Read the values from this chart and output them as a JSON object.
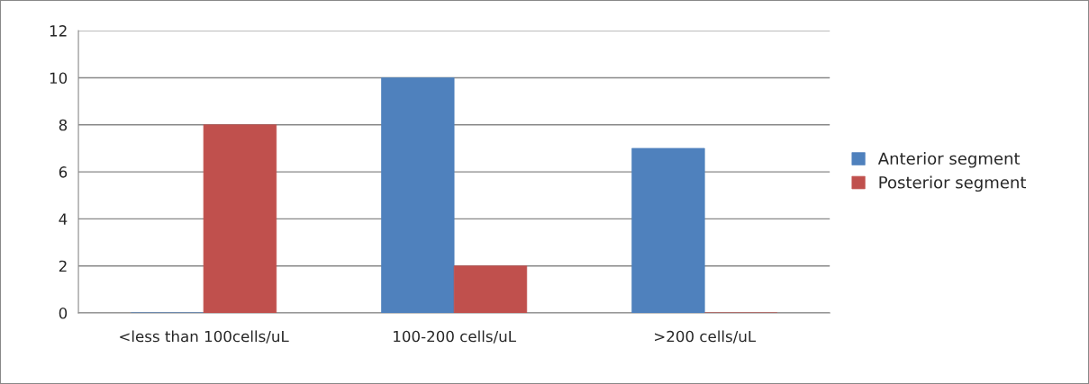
{
  "chart_data": {
    "type": "bar",
    "categories": [
      "<less than 100cells/uL",
      "100-200 cells/uL",
      ">200 cells/uL"
    ],
    "series": [
      {
        "name": "Anterior segment",
        "color": "#4f81bd",
        "values": [
          0,
          10,
          7
        ]
      },
      {
        "name": "Posterior segment",
        "color": "#c0504d",
        "values": [
          8,
          2,
          0
        ]
      }
    ],
    "ylim": [
      0,
      12
    ],
    "yticks": [
      0,
      2,
      4,
      6,
      8,
      10,
      12
    ],
    "grid": "y",
    "legend": "right"
  }
}
